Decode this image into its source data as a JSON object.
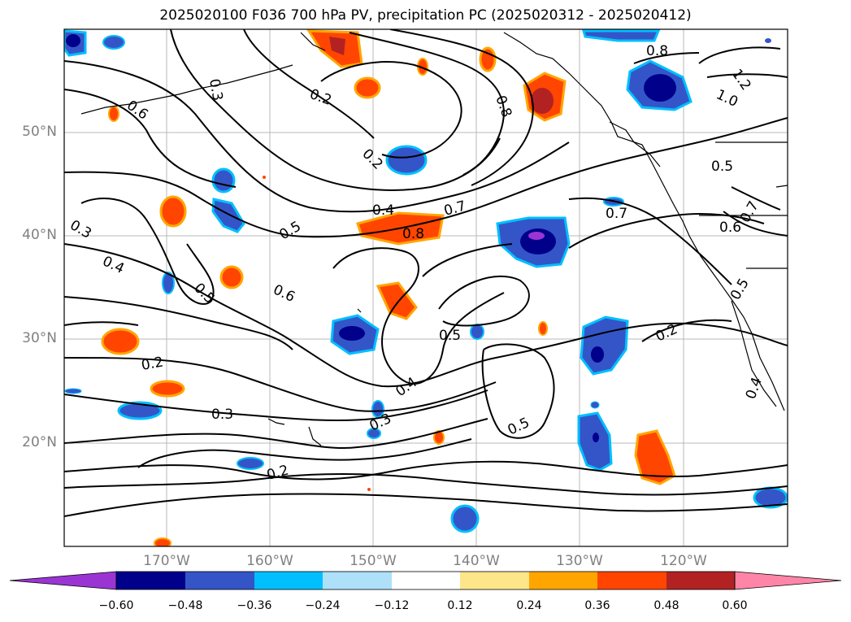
{
  "title": "2025020100 F036 700 hPa PV, precipitation PC (2025020312 - 2025020412)",
  "map": {
    "lat_labels": [
      "50°N",
      "40°N",
      "30°N",
      "20°N"
    ],
    "lon_labels": [
      "170°W",
      "160°W",
      "150°W",
      "140°W",
      "130°W",
      "120°W"
    ],
    "contour_labels": [
      "0.3",
      "0.6",
      "0.2",
      "0.8",
      "0.8",
      "1.2",
      "1.0",
      "0.2",
      "0.5",
      "0.4",
      "0.7",
      "0.7",
      "0.6",
      "0.7",
      "0.3",
      "0.4",
      "0.5",
      "0.5",
      "0.6",
      "0.8",
      "0.5",
      "0.2",
      "0.5",
      "0.2",
      "0.3",
      "0.4",
      "0.3",
      "0.2",
      "0.5",
      "0.4"
    ]
  },
  "colorbar": {
    "ticks": [
      "−0.60",
      "−0.48",
      "−0.36",
      "−0.24",
      "−0.12",
      "0.12",
      "0.24",
      "0.36",
      "0.48",
      "0.60"
    ],
    "colors": [
      "#9a35d4",
      "#00008b",
      "#3455c8",
      "#00bfff",
      "#aee0fa",
      "#ffffff",
      "#fde68a",
      "#ffa500",
      "#ff4500",
      "#b22222",
      "#ff85a8"
    ]
  }
}
